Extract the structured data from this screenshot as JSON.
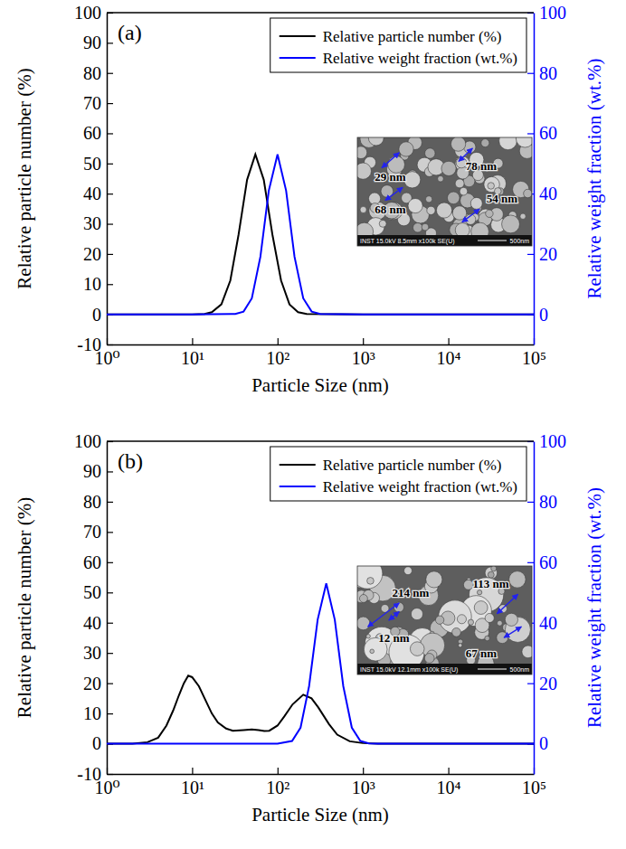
{
  "chart_data": [
    {
      "type": "line",
      "panel": "(a)",
      "x_label": "Particle Size (nm)",
      "y_label": "Relative particle number (%)",
      "y2_label": "Relative weight fraction (wt.%)",
      "log": "x",
      "grid": false,
      "legend": "upper right",
      "xlim": [
        1,
        100000
      ],
      "xticks": [
        {
          "value": 1,
          "label": "10⁰"
        },
        {
          "value": 10,
          "label": "10¹"
        },
        {
          "value": 100,
          "label": "10²"
        },
        {
          "value": 1000,
          "label": "10³"
        },
        {
          "value": 10000,
          "label": "10⁴"
        },
        {
          "value": 100000,
          "label": "10⁵"
        }
      ],
      "ylim": [
        -10,
        100
      ],
      "yticks": [
        -10,
        0,
        10,
        20,
        30,
        40,
        50,
        60,
        70,
        80,
        90,
        100
      ],
      "y2lim": [
        -10,
        100
      ],
      "y2ticks": [
        0,
        20,
        40,
        60,
        80,
        100
      ],
      "series": [
        {
          "name": "Relative particle number (%)",
          "color": "#000000",
          "line_style": "solid",
          "x": [
            1,
            10,
            14,
            17,
            22,
            28,
            35,
            44,
            55,
            69,
            87,
            110,
            138,
            174,
            219,
            1000,
            100000
          ],
          "values": [
            0,
            0,
            0.1,
            0.7,
            3.3,
            11.2,
            26.5,
            44.6,
            53,
            44.6,
            26.5,
            11.2,
            3.3,
            0.7,
            0.1,
            0,
            0
          ]
        },
        {
          "name": "Relative weight fraction (wt.%)",
          "color": "#0000ff",
          "line_style": "solid",
          "axis": "y2",
          "x": [
            1,
            10,
            32,
            40,
            50,
            63,
            79,
            100,
            126,
            158,
            200,
            251,
            316,
            1000,
            100000
          ],
          "values": [
            0,
            0,
            0.1,
            0.9,
            5.3,
            19.1,
            41,
            53,
            41,
            19.1,
            5.3,
            0.9,
            0.1,
            0,
            0
          ]
        }
      ],
      "inset_labels": [
        "29 nm",
        "78 nm",
        "68 nm",
        "54 nm"
      ],
      "inset_footer": [
        "INST 15.0kV 8.5mm x100k SE(U)",
        "500nm"
      ]
    },
    {
      "type": "line",
      "panel": "(b)",
      "x_label": "Particle Size (nm)",
      "y_label": "Relative particle number (%)",
      "y2_label": "Relative weight fraction (wt.%)",
      "log": "x",
      "grid": false,
      "legend": "upper right",
      "xlim": [
        1,
        100000
      ],
      "xticks": [
        {
          "value": 1,
          "label": "10⁰"
        },
        {
          "value": 10,
          "label": "10¹"
        },
        {
          "value": 100,
          "label": "10²"
        },
        {
          "value": 1000,
          "label": "10³"
        },
        {
          "value": 10000,
          "label": "10⁴"
        },
        {
          "value": 100000,
          "label": "10⁵"
        }
      ],
      "ylim": [
        -10,
        100
      ],
      "yticks": [
        -10,
        0,
        10,
        20,
        30,
        40,
        50,
        60,
        70,
        80,
        90,
        100
      ],
      "y2lim": [
        -10,
        100
      ],
      "y2ticks": [
        0,
        20,
        40,
        60,
        80,
        100
      ],
      "series": [
        {
          "name": "Relative particle number (%)",
          "color": "#000000",
          "line_style": "solid",
          "x": [
            1,
            2,
            3,
            4,
            5,
            6,
            7,
            8,
            9,
            10,
            12,
            14,
            17,
            20,
            25,
            30,
            40,
            50,
            60,
            70,
            80,
            100,
            120,
            150,
            200,
            250,
            300,
            400,
            500,
            700,
            1000,
            1500,
            100000
          ],
          "values": [
            0,
            0,
            0.5,
            2,
            6,
            11,
            16,
            20,
            22.5,
            22,
            19,
            15,
            10,
            7,
            5,
            4.3,
            4.5,
            4.7,
            4.5,
            4.2,
            4.3,
            6,
            9,
            13,
            16.2,
            15,
            12,
            6.5,
            3,
            0.8,
            0.2,
            0,
            0
          ]
        },
        {
          "name": "Relative weight fraction (wt.%)",
          "color": "#0000ff",
          "line_style": "solid",
          "axis": "y2",
          "x": [
            1,
            10,
            100,
            148,
            186,
            234,
            295,
            372,
            468,
            589,
            741,
            933,
            1175,
            1500,
            100000
          ],
          "values": [
            0,
            0,
            0,
            0.9,
            5.3,
            19,
            41,
            53,
            41,
            19,
            5.3,
            0.9,
            0.1,
            0,
            0
          ]
        }
      ],
      "inset_labels": [
        "113 nm",
        "214 nm",
        "12 nm",
        "67 nm"
      ],
      "inset_footer": [
        "INST 15.0kV 12.1mm x100k SE(U)",
        "500nm"
      ]
    }
  ]
}
